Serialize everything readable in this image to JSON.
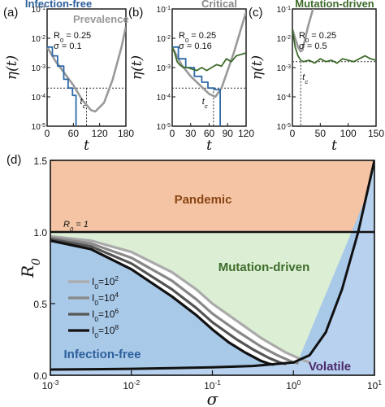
{
  "colors": {
    "pandemic": "#f4c4a4",
    "mutation_driven": "#dcefd4",
    "infection_free": "#a9c9e9",
    "volatile": "#b8d1ee",
    "prevalence": "#999999",
    "infection_free_title": "#2d5f9a",
    "critical_title": "#888888",
    "mutation_title": "#3d6b2a",
    "pandemic_text": "#8b4513",
    "mutation_text": "#3d6b2a",
    "infection_free_text": "#2d5f9a",
    "volatile_text": "#4b2a6b",
    "blue_series": "#2e6aa8",
    "green_series": "#3d6b2a"
  },
  "chart_data": [
    {
      "panel": "(a)",
      "type": "line",
      "title": "Infection-free",
      "xlabel": "t",
      "ylabel": "η(t)",
      "xlim": [
        0,
        180
      ],
      "ylim_log10": [
        -5,
        -1
      ],
      "x_ticks": [
        "0",
        "60",
        "120",
        "180"
      ],
      "y_ticks": [
        "10-5",
        "10-4",
        "10-3",
        "10-2",
        "10-1"
      ],
      "params": [
        "R0 = 0.25",
        "σ = 0.1"
      ],
      "legend": "Prevalence",
      "critical_label": "tc",
      "threshold_log10": -3.7,
      "tc": 90,
      "prevalence": {
        "x": [
          0,
          20,
          40,
          60,
          80,
          100,
          110,
          130,
          150,
          170,
          180
        ],
        "log10y": [
          -2.3,
          -2.8,
          -3.2,
          -3.6,
          -4.1,
          -4.45,
          -4.5,
          -4.2,
          -3.4,
          -2.3,
          -1.6
        ]
      },
      "simulation": {
        "color": "blue",
        "x": [
          0,
          12,
          12,
          24,
          24,
          38,
          38,
          48,
          48,
          58,
          58,
          66,
          66
        ],
        "log10y": [
          -2.3,
          -2.3,
          -2.6,
          -2.6,
          -2.95,
          -2.95,
          -3.4,
          -3.4,
          -3.7,
          -3.7,
          -3.95,
          -3.95,
          -5
        ]
      }
    },
    {
      "panel": "(b)",
      "type": "line",
      "title": "Critical",
      "xlabel": "t",
      "ylabel": "η(t)",
      "xlim": [
        0,
        120
      ],
      "ylim_log10": [
        -5,
        -1
      ],
      "x_ticks": [
        "0",
        "30",
        "60",
        "90",
        "120"
      ],
      "y_ticks": [
        "10-5",
        "10-4",
        "10-3",
        "10-2",
        "10-1"
      ],
      "params": [
        "R0 = 0.25",
        "σ = 0.16"
      ],
      "critical_label": "tc",
      "threshold_log10": -3.7,
      "tc": 67,
      "prevalence": {
        "x": [
          0,
          15,
          30,
          45,
          60,
          70,
          80,
          90,
          100,
          110,
          120
        ],
        "log10y": [
          -2.3,
          -2.9,
          -3.3,
          -3.6,
          -3.9,
          -4.0,
          -3.7,
          -3.1,
          -2.5,
          -1.8,
          -1.1
        ]
      },
      "simulation_blue": {
        "x": [
          0,
          10,
          10,
          22,
          22,
          36,
          36,
          48,
          48,
          58,
          58,
          68,
          68,
          78,
          78
        ],
        "log10y": [
          -2.3,
          -2.3,
          -2.7,
          -2.7,
          -3.0,
          -3.0,
          -3.3,
          -3.3,
          -3.5,
          -3.5,
          -3.7,
          -3.7,
          -3.75,
          -3.75,
          -5
        ]
      },
      "simulation_green": {
        "x": [
          0,
          4,
          8,
          12,
          18,
          25,
          32,
          40,
          48,
          56,
          64,
          72,
          80,
          88,
          96,
          104,
          112,
          120
        ],
        "log10y": [
          -2.3,
          -2.5,
          -2.8,
          -2.9,
          -3.0,
          -3.0,
          -3.05,
          -3.1,
          -3.0,
          -3.1,
          -3.0,
          -2.9,
          -2.95,
          -2.7,
          -2.8,
          -2.6,
          -2.55,
          -2.5
        ]
      }
    },
    {
      "panel": "(c)",
      "type": "line",
      "title": "Mutation-driven",
      "xlabel": "t",
      "ylabel": "η(t)",
      "xlim": [
        0,
        150
      ],
      "ylim_log10": [
        -5,
        -1
      ],
      "x_ticks": [
        "0",
        "50",
        "100",
        "150"
      ],
      "y_ticks": [
        "10-5",
        "10-4",
        "10-3",
        "10-2",
        "10-1"
      ],
      "params": [
        "R0 = 0.25",
        "σ = 0.5"
      ],
      "critical_label": "tc",
      "threshold_log10": -2.8,
      "tc": 15,
      "prevalence": {
        "x": [
          0,
          5,
          10,
          15,
          18,
          22,
          28,
          34,
          40
        ],
        "log10y": [
          -1.7,
          -2.0,
          -2.3,
          -2.45,
          -2.4,
          -2.1,
          -1.6,
          -1.2,
          -0.8
        ]
      },
      "simulation_green": {
        "x": [
          0,
          5,
          10,
          15,
          20,
          30,
          40,
          50,
          60,
          70,
          80,
          90,
          100,
          110,
          120,
          130,
          140,
          150
        ],
        "log10y": [
          -1.7,
          -2.3,
          -2.6,
          -2.75,
          -2.8,
          -2.75,
          -2.85,
          -2.7,
          -2.8,
          -2.75,
          -2.85,
          -2.7,
          -2.75,
          -2.8,
          -2.7,
          -2.6,
          -2.7,
          -2.75
        ]
      }
    },
    {
      "panel": "(d)",
      "type": "area",
      "title": "",
      "xlabel": "σ",
      "ylabel": "R0",
      "x_scale": "log",
      "xlim_log10": [
        -3,
        1
      ],
      "ylim": [
        0,
        1.5
      ],
      "x_ticks": [
        "10-3",
        "10-2",
        "10-1",
        "100",
        "101"
      ],
      "y_ticks": [
        "0.0",
        "0.5",
        "1.0",
        "1.5"
      ],
      "reference_line": {
        "label": "R0 = 1",
        "y": 1.0
      },
      "regions": [
        "Pandemic",
        "Mutation-driven",
        "Infection-free",
        "Volatile"
      ],
      "outer_boundary": {
        "log10x": [
          -3,
          -2.5,
          -2,
          -1.5,
          -1,
          -0.5,
          0,
          0.2,
          0.4,
          0.6,
          0.8,
          0.9,
          1.0
        ],
        "y": [
          0.04,
          0.042,
          0.045,
          0.05,
          0.055,
          0.065,
          0.09,
          0.14,
          0.3,
          0.6,
          1.0,
          1.25,
          1.5
        ]
      },
      "series": [
        {
          "name": "I0=10^2",
          "color": "#aaaaaa",
          "log10x": [
            -3,
            -2.5,
            -2,
            -1.5,
            -1.2,
            -1,
            -0.7,
            -0.4,
            -0.1,
            0.1,
            0.2
          ],
          "y": [
            0.97,
            0.94,
            0.86,
            0.72,
            0.6,
            0.5,
            0.38,
            0.26,
            0.16,
            0.11,
            0.09
          ]
        },
        {
          "name": "I0=10^4",
          "color": "#888888",
          "log10x": [
            -3,
            -2.5,
            -2,
            -1.5,
            -1.2,
            -1,
            -0.7,
            -0.4,
            -0.2,
            0,
            0.05
          ],
          "y": [
            0.96,
            0.92,
            0.82,
            0.66,
            0.53,
            0.43,
            0.31,
            0.2,
            0.14,
            0.09,
            0.085
          ]
        },
        {
          "name": "I0=10^6",
          "color": "#555555",
          "log10x": [
            -3,
            -2.5,
            -2,
            -1.5,
            -1.2,
            -1,
            -0.7,
            -0.5,
            -0.3,
            -0.15,
            -0.1
          ],
          "y": [
            0.95,
            0.9,
            0.78,
            0.6,
            0.47,
            0.37,
            0.25,
            0.18,
            0.12,
            0.085,
            0.08
          ]
        },
        {
          "name": "I0=10^8",
          "color": "#111111",
          "log10x": [
            -3,
            -2.5,
            -2,
            -1.5,
            -1.2,
            -1,
            -0.8,
            -0.6,
            -0.4,
            -0.3,
            -0.25
          ],
          "y": [
            0.94,
            0.88,
            0.74,
            0.55,
            0.42,
            0.32,
            0.23,
            0.16,
            0.1,
            0.08,
            0.075
          ]
        }
      ]
    }
  ]
}
